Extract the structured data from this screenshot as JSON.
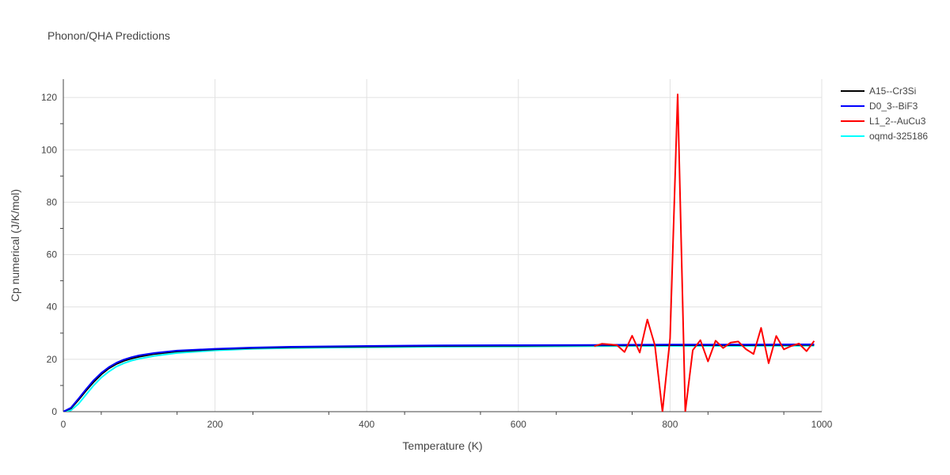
{
  "chart_data": {
    "type": "line",
    "title": "Phonon/QHA Predictions",
    "xlabel": "Temperature (K)",
    "ylabel": "Cp numerical (J/K/mol)",
    "xlim": [
      0,
      1000
    ],
    "ylim": [
      0,
      127
    ],
    "xticks": [
      0,
      200,
      400,
      600,
      800,
      1000
    ],
    "yticks": [
      0,
      20,
      40,
      60,
      80,
      100,
      120
    ],
    "grid": true,
    "legend_position": "top-right",
    "series": [
      {
        "name": "A15--Cr3Si",
        "color": "#000000",
        "x": [
          0,
          10,
          20,
          30,
          40,
          50,
          60,
          70,
          80,
          90,
          100,
          120,
          150,
          200,
          250,
          300,
          400,
          500,
          600,
          700,
          800,
          900,
          990
        ],
        "y": [
          0,
          1.2,
          4.5,
          8.0,
          11.3,
          14.2,
          16.5,
          18.2,
          19.4,
          20.3,
          21.0,
          22.0,
          23.0,
          23.8,
          24.3,
          24.6,
          24.9,
          25.1,
          25.2,
          25.3,
          25.4,
          25.4,
          25.5
        ]
      },
      {
        "name": "D0_3--BiF3",
        "color": "#0000ff",
        "x": [
          0,
          10,
          20,
          30,
          40,
          50,
          60,
          70,
          80,
          90,
          100,
          120,
          150,
          200,
          250,
          300,
          400,
          500,
          600,
          700,
          800,
          900,
          990
        ],
        "y": [
          0,
          1.5,
          5.0,
          8.6,
          12.0,
          14.8,
          17.0,
          18.7,
          19.9,
          20.8,
          21.5,
          22.4,
          23.3,
          24.0,
          24.5,
          24.8,
          25.1,
          25.3,
          25.4,
          25.5,
          25.6,
          25.6,
          25.7
        ]
      },
      {
        "name": "L1_2--AuCu3",
        "color": "#ff0000",
        "x": [
          700,
          710,
          720,
          730,
          740,
          750,
          760,
          770,
          780,
          790,
          800,
          810,
          820,
          830,
          840,
          850,
          860,
          870,
          880,
          890,
          900,
          910,
          920,
          930,
          940,
          950,
          960,
          970,
          980,
          990
        ],
        "y": [
          25.0,
          25.9,
          25.7,
          25.4,
          22.8,
          29.0,
          22.6,
          35.2,
          25.4,
          0,
          28.0,
          121.2,
          0,
          23.5,
          27.3,
          19.2,
          27.1,
          24.3,
          26.4,
          26.8,
          23.9,
          22.0,
          32.0,
          18.5,
          28.9,
          23.8,
          25.1,
          26.0,
          23.1,
          27.0
        ]
      },
      {
        "name": "oqmd-325186",
        "color": "#00ffff",
        "x": [
          0,
          10,
          20,
          30,
          40,
          50,
          60,
          70,
          80,
          90,
          100,
          120,
          150,
          200,
          250,
          300,
          400,
          500,
          600,
          700,
          800,
          900,
          990
        ],
        "y": [
          0,
          0.5,
          3.0,
          6.5,
          10.0,
          13.0,
          15.3,
          17.2,
          18.5,
          19.5,
          20.2,
          21.3,
          22.4,
          23.4,
          24.0,
          24.3,
          24.6,
          24.8,
          24.9,
          25.0,
          25.1,
          25.1,
          25.2
        ]
      }
    ]
  }
}
